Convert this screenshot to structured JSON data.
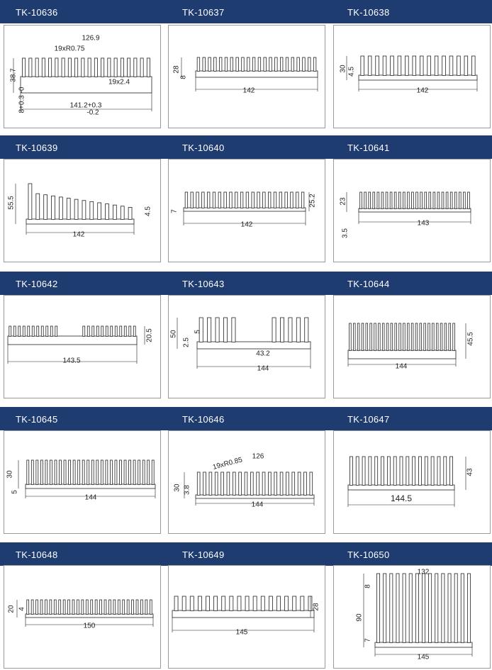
{
  "colors": {
    "header_band": "#1f3c70",
    "header_text": "#ffffff",
    "panel_border": "#9a9a9a"
  },
  "items": [
    {
      "id": "TK-10636",
      "dims": [
        "126.9",
        "19xR0.75",
        "19x2.4",
        "38.7",
        "8+0.3 -0",
        "141.2+0.3",
        "-0.2"
      ]
    },
    {
      "id": "TK-10637",
      "dims": [
        "28",
        "8",
        "142"
      ]
    },
    {
      "id": "TK-10638",
      "dims": [
        "30",
        "4.5",
        "142"
      ]
    },
    {
      "id": "TK-10639",
      "dims": [
        "55.5",
        "4.5",
        "142"
      ]
    },
    {
      "id": "TK-10640",
      "dims": [
        "7",
        "25.2",
        "142"
      ]
    },
    {
      "id": "TK-10641",
      "dims": [
        "23",
        "3.5",
        "143"
      ]
    },
    {
      "id": "TK-10642",
      "dims": [
        "20.5",
        "143.5"
      ]
    },
    {
      "id": "TK-10643",
      "dims": [
        "50",
        "2.5",
        "5",
        "43.2",
        "144"
      ]
    },
    {
      "id": "TK-10644",
      "dims": [
        "45.5",
        "144"
      ]
    },
    {
      "id": "TK-10645",
      "dims": [
        "30",
        "5",
        "144"
      ]
    },
    {
      "id": "TK-10646",
      "dims": [
        "126",
        "19xR0.85",
        "30",
        "3.8",
        "144"
      ]
    },
    {
      "id": "TK-10647",
      "dims": [
        "43",
        "144.5"
      ]
    },
    {
      "id": "TK-10648",
      "dims": [
        "20",
        "4",
        "150"
      ]
    },
    {
      "id": "TK-10649",
      "dims": [
        "28",
        "145"
      ]
    },
    {
      "id": "TK-10650",
      "dims": [
        "132",
        "8",
        "90",
        "7",
        "145"
      ]
    }
  ]
}
